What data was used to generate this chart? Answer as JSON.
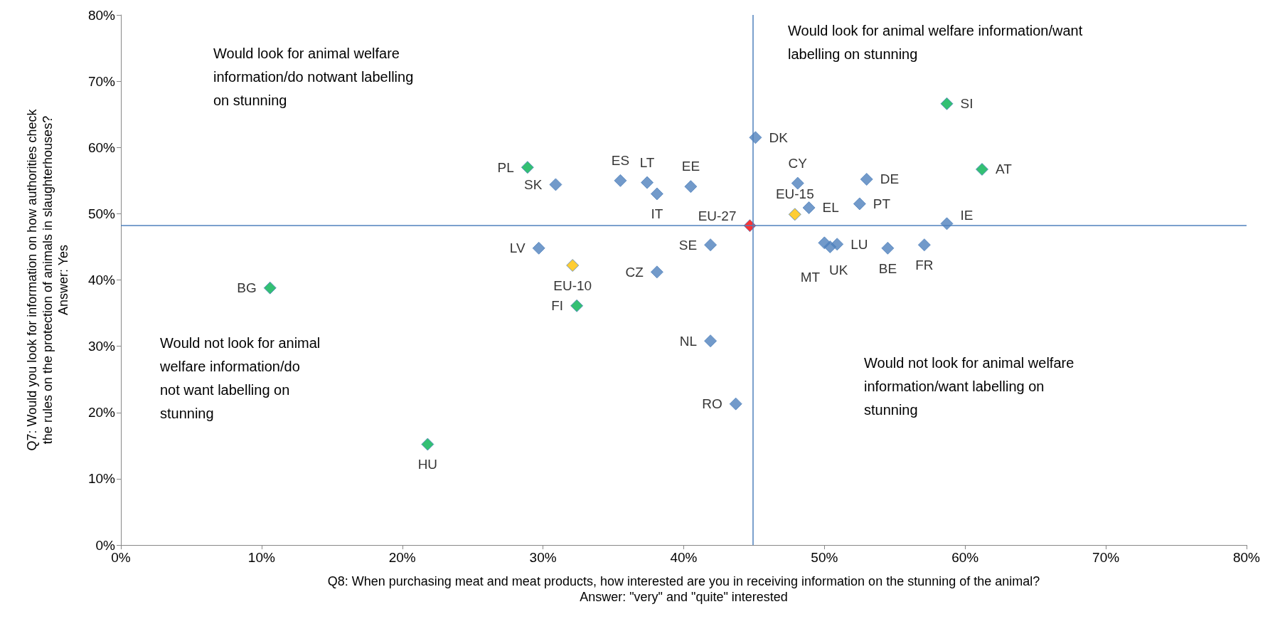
{
  "chart_data": {
    "type": "scatter",
    "xlabel": "Q8: When purchasing meat and meat products, how interested are you in receiving information on the stunning of the animal?\nAnswer: \"very\" and \"quite\" interested",
    "ylabel": "Q7: Would you look for information on how authorities check\nthe rules on the protection of animals in slaughterhouses?\nAnswer: Yes",
    "xlim": [
      0,
      80
    ],
    "ylim": [
      0,
      80
    ],
    "xticks": [
      {
        "value": 0,
        "label": "0%"
      },
      {
        "value": 10,
        "label": "10%"
      },
      {
        "value": 20,
        "label": "20%"
      },
      {
        "value": 30,
        "label": "30%"
      },
      {
        "value": 40,
        "label": "40%"
      },
      {
        "value": 50,
        "label": "50%"
      },
      {
        "value": 60,
        "label": "60%"
      },
      {
        "value": 70,
        "label": "70%"
      },
      {
        "value": 80,
        "label": "80%"
      }
    ],
    "yticks": [
      {
        "value": 0,
        "label": "0%"
      },
      {
        "value": 10,
        "label": "10%"
      },
      {
        "value": 20,
        "label": "20%"
      },
      {
        "value": 30,
        "label": "30%"
      },
      {
        "value": 40,
        "label": "40%"
      },
      {
        "value": 50,
        "label": "50%"
      },
      {
        "value": 60,
        "label": "60%"
      },
      {
        "value": 70,
        "label": "70%"
      },
      {
        "value": 80,
        "label": "80%"
      }
    ],
    "grid": false,
    "marker": "diamond",
    "x": [
      28.9,
      30.9,
      35.5,
      37.4,
      38.1,
      40.5,
      45.1,
      48.1,
      53.0,
      48.9,
      47.9,
      52.5,
      58.7,
      44.7,
      58.7,
      61.2,
      50.0,
      50.4,
      50.9,
      54.5,
      57.1,
      41.9,
      29.7,
      32.1,
      38.1,
      10.6,
      32.4,
      41.9,
      43.7,
      21.8
    ],
    "values": [
      57.0,
      54.4,
      55.0,
      54.7,
      53.0,
      54.1,
      61.5,
      54.6,
      55.2,
      50.9,
      49.9,
      51.5,
      48.5,
      48.2,
      66.6,
      56.7,
      45.6,
      45.0,
      45.4,
      44.8,
      45.3,
      45.3,
      44.8,
      42.2,
      41.2,
      38.8,
      36.1,
      30.8,
      21.3,
      15.2
    ],
    "value_labels": [
      "PL",
      "SK",
      "ES",
      "LT",
      "IT",
      "EE",
      "DK",
      "CY",
      "DE",
      "EL",
      "EU-15",
      "PT",
      "IE",
      "EU-27",
      "SI",
      "AT",
      "MT",
      "UK",
      "LU",
      "BE",
      "FR",
      "SE",
      "LV",
      "EU-10",
      "CZ",
      "BG",
      "FI",
      "NL",
      "RO",
      "HU"
    ],
    "colors": [
      "#00b050",
      "#4f81bd",
      "#4f81bd",
      "#4f81bd",
      "#4f81bd",
      "#4f81bd",
      "#4f81bd",
      "#4f81bd",
      "#4f81bd",
      "#4f81bd",
      "#ffc000",
      "#4f81bd",
      "#4f81bd",
      "#ff0000",
      "#00b050",
      "#00b050",
      "#4f81bd",
      "#4f81bd",
      "#4f81bd",
      "#4f81bd",
      "#4f81bd",
      "#4f81bd",
      "#4f81bd",
      "#ffc000",
      "#4f81bd",
      "#00b050",
      "#00b050",
      "#4f81bd",
      "#4f81bd",
      "#00b050"
    ],
    "ref_lines": [
      {
        "axis": "y",
        "value": 48.2,
        "color": "#4f81bd"
      },
      {
        "axis": "x",
        "value": 44.9,
        "color": "#4f81bd"
      }
    ],
    "annotations": [
      "Would look for animal welfare\ninformation/do notwant labelling\non stunning",
      "Would look for animal welfare information/want\nlabelling on stunning",
      "Would not look for animal\nwelfare information/do\nnot want labelling on\nstunning",
      "Would not look for animal welfare\ninformation/want labelling on\nstunning"
    ]
  }
}
